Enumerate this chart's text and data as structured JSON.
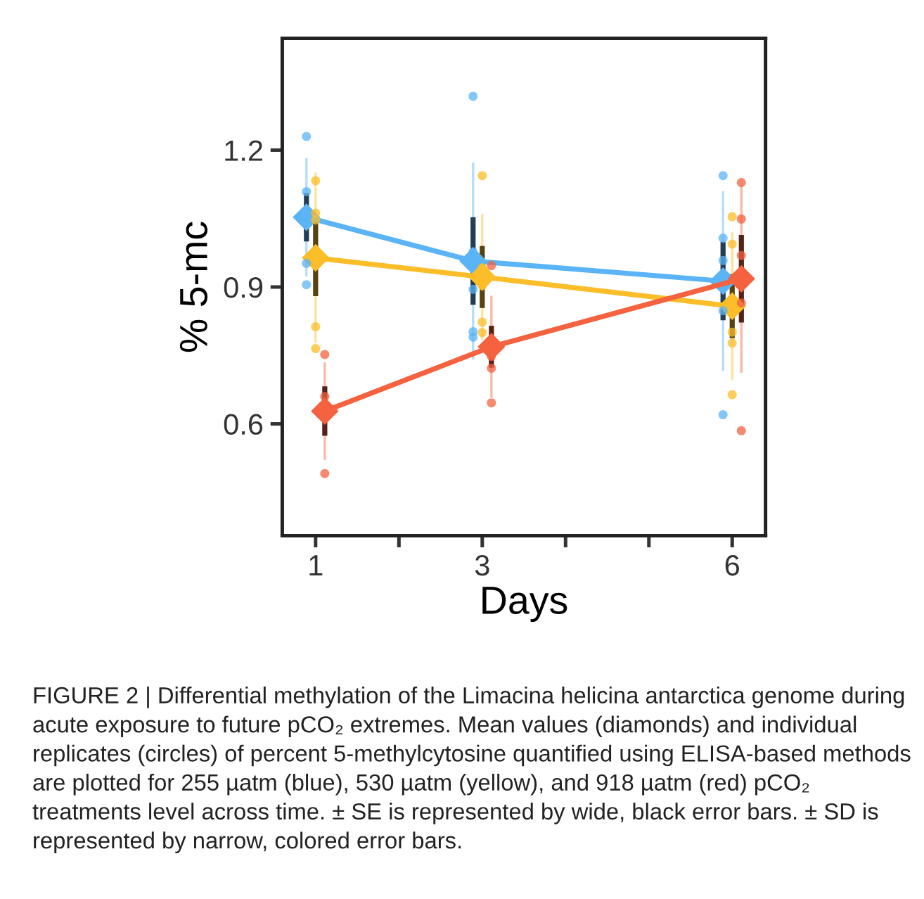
{
  "chart_data": {
    "type": "line",
    "xlabel": "Days",
    "ylabel": "% 5-mc",
    "xlim": [
      0.6,
      6.4
    ],
    "xticks": [
      1,
      {
        "value": 2,
        "label": null
      },
      3,
      {
        "value": 4,
        "label": null
      },
      {
        "value": 5,
        "label": null
      },
      6
    ],
    "ylim": [
      0.355,
      1.445
    ],
    "yticks": [
      0.6,
      0.9,
      1.2
    ],
    "grid": false,
    "series": [
      {
        "type": "scatter",
        "color": "#5ab4f5",
        "x": [
          0.89,
          0.89,
          0.89,
          0.89,
          2.89,
          2.89,
          2.89,
          2.89,
          2.89,
          5.89,
          5.89,
          5.89,
          5.89,
          5.89
        ],
        "values": [
          1.23,
          1.109,
          0.952,
          0.905,
          1.318,
          0.977,
          0.895,
          0.802,
          0.79,
          1.144,
          1.007,
          0.958,
          0.848,
          0.62
        ]
      },
      {
        "type": "scatter",
        "color": "#fbbd28",
        "x": [
          1,
          1,
          1,
          1,
          1,
          3,
          3,
          3,
          3,
          3,
          6,
          6,
          6,
          6,
          6
        ],
        "values": [
          1.133,
          1.062,
          1.047,
          0.813,
          0.765,
          1.144,
          0.942,
          0.903,
          0.823,
          0.8,
          1.054,
          0.994,
          0.801,
          0.777,
          0.664
        ]
      },
      {
        "type": "scatter",
        "color": "#f4623f",
        "x": [
          1.11,
          1.11,
          1.11,
          3.11,
          3.11,
          3.11,
          3.11,
          6.11,
          6.11,
          6.11,
          6.11,
          6.11
        ],
        "values": [
          0.752,
          0.66,
          0.491,
          0.947,
          0.748,
          0.722,
          0.646,
          1.129,
          1.049,
          0.969,
          0.865,
          0.585
        ]
      },
      {
        "type": "scatter",
        "color": "#5ab4f5",
        "marker": "diamond",
        "x": [
          0.89,
          2.89,
          5.89
        ],
        "values": [
          1.053,
          0.957,
          0.913
        ],
        "errors": [
          0.13,
          0.216,
          0.197
        ]
      },
      {
        "type": "scatter",
        "color": "#fbbd28",
        "marker": "diamond",
        "x": [
          1,
          3,
          6
        ],
        "values": [
          0.964,
          0.922,
          0.858
        ],
        "errors": [
          0.187,
          0.138,
          0.162
        ]
      },
      {
        "type": "scatter",
        "color": "#f4623f",
        "marker": "diamond",
        "x": [
          1.11,
          3.11,
          6.11
        ],
        "values": [
          0.628,
          0.769,
          0.918
        ],
        "errors": [
          0.107,
          0.112,
          0.206
        ]
      },
      {
        "color": "#5ab4f5",
        "marker": "diamond",
        "x": [
          0.89,
          2.89,
          5.89
        ],
        "values": [
          1.053,
          0.957,
          0.913
        ],
        "errors": [
          0.053,
          0.096,
          0.086
        ]
      },
      {
        "color": "#fbbd28",
        "marker": "diamond",
        "x": [
          1,
          3,
          6
        ],
        "values": [
          0.964,
          0.922,
          0.858
        ],
        "errors": [
          0.084,
          0.068,
          0.07
        ]
      },
      {
        "color": "#f4623f",
        "marker": "diamond",
        "x": [
          1.11,
          3.11,
          6.11
        ],
        "values": [
          0.628,
          0.769,
          0.918
        ],
        "errors": [
          0.054,
          0.046,
          0.096
        ]
      }
    ],
    "annotations": [
      "FIGURE 2 | Differential methylation of the Limacina helicina antarctica genome during acute exposure to future pCO₂ extremes. Mean values (diamonds) and individual replicates (circles) of percent 5-methylcytosine quantified using ELISA-based methods are plotted for 255 µatm (blue), 530 µatm (yellow), and 918 µatm (red) pCO₂ treatments level across time. ± SE is represented by wide, black error bars. ± SD is represented by narrow, colored error bars."
    ]
  }
}
